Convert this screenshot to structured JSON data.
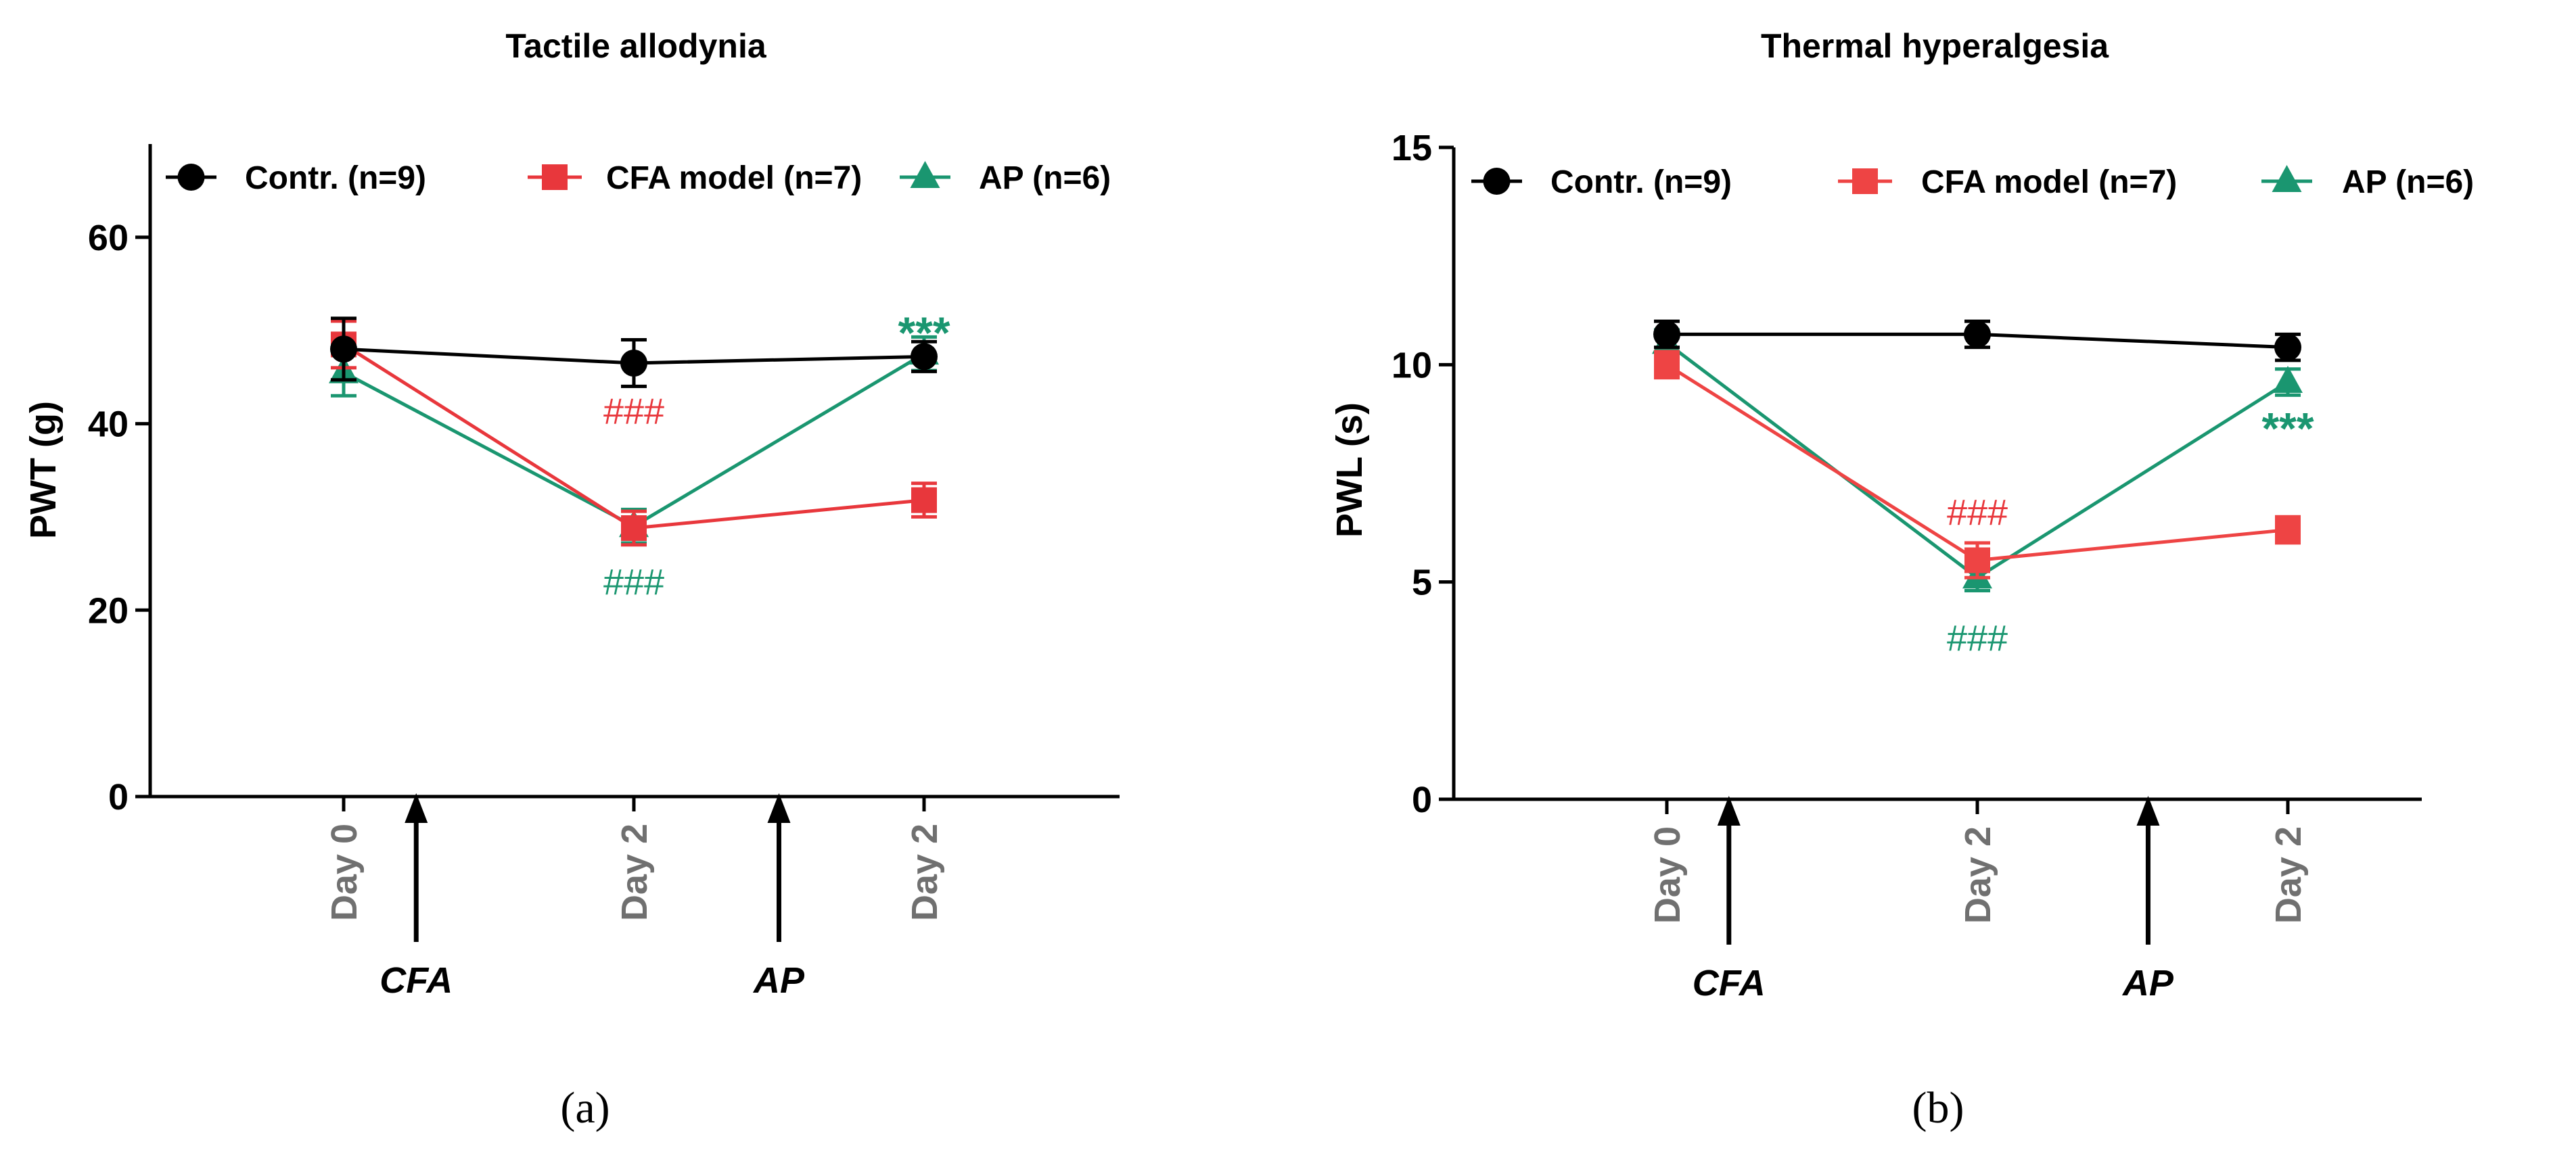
{
  "chart_data": [
    {
      "type": "line",
      "title": "Tactile allodynia",
      "panel_label": "(a)",
      "ylabel": "PWT (g)",
      "xlabel": "",
      "ylim": [
        0,
        70
      ],
      "yticks": [
        0,
        20,
        40,
        60
      ],
      "yticks_labels": [
        "0",
        "20",
        "40",
        "60"
      ],
      "categories": [
        "Day 0",
        "Day 2",
        "Day 2"
      ],
      "series": [
        {
          "name": "Contr. (n=9)",
          "color": "#000000",
          "marker": "circle",
          "values": [
            48,
            46.5,
            47.2
          ],
          "errors": [
            3.3,
            2.5,
            1.6
          ]
        },
        {
          "name": "CFA model (n=7)",
          "color": "#e8373c",
          "marker": "square",
          "values": [
            48.5,
            28.8,
            31.8
          ],
          "errors": [
            2.5,
            1.8,
            1.8
          ]
        },
        {
          "name": "AP (n=6)",
          "color": "#1a9670",
          "marker": "triangle",
          "values": [
            45.5,
            29,
            47.5
          ],
          "errors": [
            2.5,
            1.8,
            1.8
          ]
        }
      ],
      "arrows": [
        {
          "label": "CFA",
          "at": 0.25
        },
        {
          "label": "AP",
          "at": 1.5
        }
      ],
      "annotations": [
        {
          "text": "###",
          "color": "#e8373c",
          "x": 1,
          "y": 41.3
        },
        {
          "text": "###",
          "color": "#1a9670",
          "x": 1,
          "y": 23
        },
        {
          "text": "***",
          "color": "#1a9670",
          "x": 2,
          "y": 51
        }
      ]
    },
    {
      "type": "line",
      "title": "Thermal hyperalgesia",
      "panel_label": "(b)",
      "ylabel": "PWL (s)",
      "xlabel": "",
      "ylim": [
        0,
        15
      ],
      "yticks": [
        0,
        5,
        10,
        15
      ],
      "yticks_labels": [
        "0",
        "5",
        "10",
        "15"
      ],
      "categories": [
        "Day 0",
        "Day 2",
        "Day 2"
      ],
      "series": [
        {
          "name": "Contr. (n=9)",
          "color": "#000000",
          "marker": "circle",
          "values": [
            10.7,
            10.7,
            10.4
          ],
          "errors": [
            0.3,
            0.3,
            0.3
          ]
        },
        {
          "name": "CFA model (n=7)",
          "color": "#ee4444",
          "marker": "square",
          "values": [
            10,
            5.5,
            6.2
          ],
          "errors": [
            0.3,
            0.4,
            0.3
          ]
        },
        {
          "name": "AP (n=6)",
          "color": "#1a9670",
          "marker": "triangle",
          "values": [
            10.5,
            5.1,
            9.6
          ],
          "errors": [
            0.3,
            0.3,
            0.3
          ]
        }
      ],
      "arrows": [
        {
          "label": "CFA",
          "at": 0.2
        },
        {
          "label": "AP",
          "at": 1.55
        }
      ],
      "annotations": [
        {
          "text": "###",
          "color": "#e8373c",
          "x": 1,
          "y": 6.6
        },
        {
          "text": "###",
          "color": "#1a9670",
          "x": 1,
          "y": 3.7
        },
        {
          "text": "***",
          "color": "#1a9670",
          "x": 2,
          "y": 8.8
        }
      ]
    }
  ]
}
